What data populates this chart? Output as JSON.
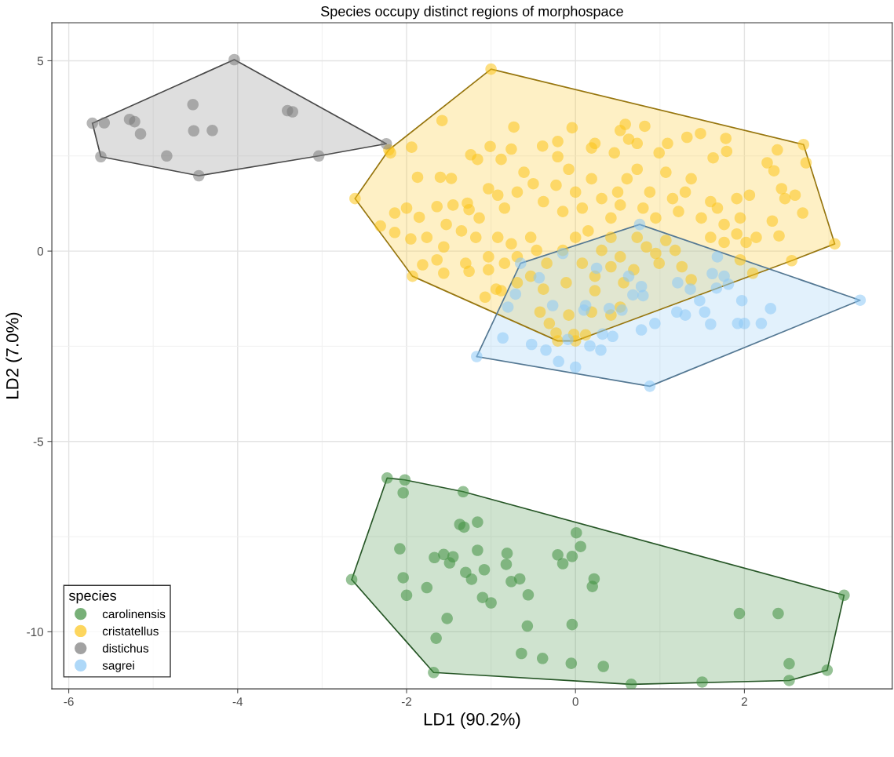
{
  "chart_data": {
    "type": "scatter",
    "title": "Species occupy distinct regions of morphospace",
    "xlabel": "LD1 (90.2%)",
    "ylabel": "LD2 (7.0%)",
    "legend_title": "species",
    "xlim": [
      -6.2,
      3.75
    ],
    "ylim": [
      -11.5,
      6.0
    ],
    "xticks": [
      -6,
      -4,
      -2,
      0,
      2
    ],
    "yticks": [
      -10,
      -5,
      0,
      5
    ],
    "grid": true,
    "legend": "bottom left",
    "marker": "circle",
    "series": [
      {
        "name": "carolinensis",
        "color": "#3f8f3f",
        "x": [
          -2.23,
          -2.02,
          -2.04,
          -1.33,
          -1.37,
          -1.32,
          -1.16,
          0.01,
          0.06,
          -2.08,
          -1.67,
          -1.56,
          -1.45,
          -1.49,
          -1.16,
          -0.81,
          -0.82,
          -0.21,
          -0.04,
          -0.15,
          -1.3,
          -1.08,
          -1.23,
          -2.04,
          -0.76,
          -0.66,
          0.22,
          0.2,
          -1.76,
          -2.0,
          -1.1,
          -1.0,
          -0.56,
          -2.65,
          -1.52,
          -1.65,
          -0.57,
          -0.04,
          1.94,
          2.4,
          3.18,
          -0.64,
          -0.39,
          -0.05,
          0.33,
          -1.68,
          0.66,
          1.5,
          2.53,
          2.53,
          2.98
        ],
        "values": [
          -5.96,
          -6.01,
          -6.35,
          -6.32,
          -7.18,
          -7.25,
          -7.12,
          -7.4,
          -7.76,
          -7.82,
          -8.05,
          -7.97,
          -8.03,
          -8.19,
          -7.86,
          -7.94,
          -8.23,
          -7.98,
          -8.02,
          -8.21,
          -8.44,
          -8.37,
          -8.62,
          -8.58,
          -8.68,
          -8.61,
          -8.61,
          -8.81,
          -8.84,
          -9.04,
          -9.1,
          -9.24,
          -9.03,
          -8.63,
          -9.65,
          -10.17,
          -9.85,
          -9.81,
          -9.52,
          -9.52,
          -9.04,
          -10.57,
          -10.7,
          -10.83,
          -10.91,
          -11.07,
          -11.38,
          -11.32,
          -10.84,
          -11.28,
          -11.01
        ]
      },
      {
        "name": "cristatellus",
        "color": "#fcc419",
        "x": [
          -1.0,
          2.7,
          2.73,
          3.07,
          2.56,
          0.0,
          -0.21,
          -1.93,
          -2.61,
          -2.21,
          -1.58,
          -0.73,
          -0.04,
          0.53,
          0.59,
          0.82,
          1.32,
          1.48,
          1.78,
          2.39,
          2.27,
          2.35,
          1.79,
          1.63,
          1.09,
          0.99,
          0.73,
          0.63,
          0.46,
          0.23,
          0.19,
          -0.21,
          -0.21,
          -0.39,
          -0.76,
          -1.01,
          -1.24,
          -1.16,
          -0.88,
          -1.94,
          -2.19,
          -1.87,
          -1.6,
          -1.47,
          -2.14,
          -2.0,
          -1.85,
          -1.64,
          -1.45,
          -1.28,
          -1.26,
          -2.31,
          -2.14,
          -1.95,
          -1.76,
          -1.53,
          -1.35,
          -1.14,
          -1.03,
          -0.92,
          -0.84,
          -0.69,
          -0.61,
          -0.5,
          -0.38,
          -0.23,
          -0.15,
          -0.08,
          0.0,
          0.08,
          0.19,
          0.31,
          0.42,
          0.5,
          0.53,
          0.61,
          0.73,
          0.8,
          0.88,
          0.95,
          1.07,
          1.15,
          1.22,
          1.3,
          1.37,
          1.49,
          1.6,
          1.68,
          1.76,
          1.91,
          1.95,
          2.06,
          2.14,
          2.33,
          2.41,
          2.48,
          2.6,
          2.69,
          2.44,
          1.6,
          1.76,
          1.91,
          2.02,
          -0.92,
          -0.76,
          -0.69,
          -0.53,
          -0.46,
          -0.34,
          -0.15,
          0.0,
          0.15,
          0.31,
          0.42,
          0.53,
          0.73,
          0.84,
          0.95,
          1.07,
          1.18,
          0.99,
          -1.18,
          -1.03,
          -1.3,
          -1.56,
          -1.64,
          -1.81,
          -1.56,
          -1.26,
          -1.03,
          -0.84,
          -0.69,
          -0.53,
          -0.38,
          -0.11,
          0.08,
          0.23,
          0.42,
          0.57,
          0.69,
          1.26,
          1.37,
          1.95,
          2.1,
          -0.42,
          -0.31,
          -0.08,
          0.19,
          0.23,
          0.53,
          0.42,
          -1.07,
          -0.94,
          -0.88,
          -0.23,
          0.12,
          -0.02
        ],
        "values": [
          4.78,
          2.8,
          2.32,
          0.19,
          -0.25,
          -2.36,
          -2.36,
          -0.66,
          1.38,
          2.66,
          3.43,
          3.26,
          3.24,
          3.17,
          3.33,
          3.28,
          2.99,
          3.09,
          2.96,
          2.66,
          2.32,
          2.11,
          2.62,
          2.45,
          2.83,
          2.58,
          2.83,
          2.94,
          2.58,
          2.83,
          2.71,
          2.88,
          2.48,
          2.76,
          2.68,
          2.75,
          2.53,
          2.41,
          2.41,
          2.73,
          2.58,
          1.94,
          1.94,
          1.91,
          1.0,
          1.13,
          0.89,
          1.17,
          1.21,
          1.26,
          1.09,
          0.66,
          0.49,
          0.32,
          0.36,
          0.7,
          0.53,
          0.87,
          1.64,
          1.47,
          1.13,
          1.55,
          2.07,
          1.77,
          1.3,
          1.73,
          1.04,
          2.15,
          1.55,
          1.13,
          1.9,
          1.38,
          0.87,
          1.55,
          1.21,
          1.9,
          2.15,
          1.13,
          1.55,
          0.87,
          2.07,
          1.38,
          1.04,
          1.55,
          1.9,
          0.87,
          1.3,
          1.13,
          0.7,
          1.38,
          0.87,
          1.47,
          0.36,
          0.79,
          0.4,
          1.38,
          1.47,
          1.0,
          1.64,
          0.36,
          0.23,
          0.45,
          0.23,
          0.36,
          0.19,
          -0.15,
          0.36,
          0.02,
          -0.32,
          0.02,
          0.36,
          0.53,
          0.02,
          0.36,
          -0.15,
          0.36,
          0.11,
          -0.06,
          0.28,
          0.02,
          -0.32,
          0.36,
          -0.15,
          -0.32,
          0.11,
          -0.23,
          -0.36,
          -0.58,
          -0.53,
          -0.49,
          -0.32,
          -0.83,
          -0.66,
          -1.0,
          -0.83,
          -0.32,
          -0.66,
          -0.41,
          -0.83,
          -0.49,
          -0.41,
          -0.75,
          -0.23,
          -0.58,
          -1.6,
          -1.9,
          -1.68,
          -1.6,
          -1.04,
          -1.47,
          -1.68,
          -1.21,
          -1.0,
          -1.04,
          -2.15,
          -2.2,
          -2.19
        ]
      },
      {
        "name": "distichus",
        "color": "#7a7a7a",
        "x": [
          -5.72,
          -5.58,
          -5.28,
          -5.22,
          -5.15,
          -5.62,
          -4.84,
          -4.53,
          -4.52,
          -4.3,
          -4.46,
          -4.04,
          -3.41,
          -3.35,
          -3.04,
          -2.24
        ],
        "values": [
          3.36,
          3.37,
          3.46,
          3.4,
          3.08,
          2.48,
          2.5,
          3.85,
          3.16,
          3.17,
          1.98,
          5.03,
          3.69,
          3.66,
          2.5,
          2.82
        ]
      },
      {
        "name": "sagrei",
        "color": "#8cc8f5",
        "x": [
          0.76,
          -0.65,
          -1.17,
          3.37,
          0.88,
          1.68,
          1.62,
          1.76,
          1.81,
          1.67,
          1.36,
          1.21,
          0.78,
          0.68,
          0.8,
          0.63,
          0.25,
          -0.43,
          -0.15,
          0.12,
          0.1,
          0.4,
          0.55,
          -0.27,
          -0.8,
          -0.71,
          1.47,
          1.53,
          1.2,
          1.3,
          1.97,
          2.31,
          1.92,
          2.0,
          2.2,
          1.6,
          0.94,
          0.78,
          0.44,
          0.32,
          -0.09,
          -0.52,
          -0.86,
          0.17,
          -0.2,
          0.0,
          -0.35,
          0.3
        ],
        "values": [
          0.7,
          -0.32,
          -2.77,
          -1.29,
          -3.55,
          -0.15,
          -0.59,
          -0.66,
          -0.87,
          -0.97,
          -1.0,
          -0.83,
          -0.93,
          -1.15,
          -1.17,
          -0.66,
          -0.45,
          -0.7,
          -0.06,
          -1.43,
          -1.55,
          -1.51,
          -1.55,
          -1.43,
          -1.47,
          -1.13,
          -1.3,
          -1.6,
          -1.6,
          -1.68,
          -1.3,
          -1.51,
          -1.9,
          -1.9,
          -1.9,
          -1.92,
          -1.9,
          -2.07,
          -2.24,
          -2.18,
          -2.32,
          -2.45,
          -2.28,
          -2.49,
          -2.9,
          -3.05,
          -2.6,
          -2.6
        ]
      }
    ]
  }
}
